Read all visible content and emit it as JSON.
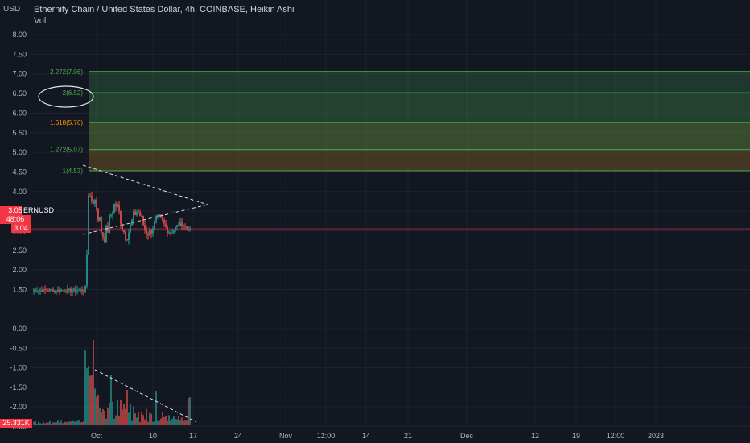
{
  "header": {
    "currency": "USD",
    "title": "Ethernity Chain / United States Dollar, 4h, COINBASE, Heikin Ashi",
    "indicator": "Vol"
  },
  "price_axis": {
    "ticks": [
      "8.00",
      "7.50",
      "7.00",
      "6.50",
      "6.00",
      "5.50",
      "5.00",
      "4.50",
      "4.00",
      "3.50",
      "3.00",
      "2.50",
      "2.00",
      "1.50"
    ],
    "last_price": "3.05",
    "countdown": "48:06",
    "low_price": "3.04",
    "symbol": "ERNUSD"
  },
  "volume_axis": {
    "ticks": [
      "0.00",
      "-0.50",
      "-1.00",
      "-1.50",
      "-2.00",
      "-2.50"
    ],
    "current_volume": "25.331K"
  },
  "time_axis": {
    "labels": [
      "Oct",
      "10",
      "17",
      "24",
      "Nov",
      "12:00",
      "14",
      "21",
      "Dec",
      "12",
      "19",
      "12:00",
      "2023"
    ]
  },
  "colors": {
    "background": "#131722",
    "grid": "#1e222d",
    "up": "#26a69a",
    "down": "#ef5350",
    "fib_line": "#4caf50",
    "fib_text": "#4caf50",
    "fib_highlight_text": "#ff9800",
    "price_line": "#f23645"
  },
  "chart_data": {
    "type": "candlestick",
    "symbol": "ERNUSD",
    "interval": "4h",
    "exchange": "COINBASE",
    "chart_style": "Heikin Ashi",
    "y_range": [
      1.3,
      8.0
    ],
    "fib_extension": [
      {
        "level": "2.272",
        "price": 7.06,
        "label": "2.272(7.06)"
      },
      {
        "level": "2",
        "price": 6.52,
        "label": "2(6.52)"
      },
      {
        "level": "1.618",
        "price": 5.76,
        "label": "1.618(5.76)"
      },
      {
        "level": "1.272",
        "price": 5.07,
        "label": "1.272(5.07)"
      },
      {
        "level": "1",
        "price": 4.53,
        "label": "1(4.53)"
      }
    ],
    "price_series_approx": [
      {
        "x": "Sep 22",
        "close": 1.5
      },
      {
        "x": "Sep 25",
        "close": 1.45
      },
      {
        "x": "Sep 28",
        "close": 1.55
      },
      {
        "x": "Sep 29",
        "close": 3.0
      },
      {
        "x": "Sep 30",
        "close": 3.9
      },
      {
        "x": "Oct 2",
        "close": 3.2
      },
      {
        "x": "Oct 5",
        "close": 3.8
      },
      {
        "x": "Oct 8",
        "close": 3.1
      },
      {
        "x": "Oct 10",
        "close": 2.95
      },
      {
        "x": "Oct 11",
        "close": 3.6
      },
      {
        "x": "Oct 13",
        "close": 3.0
      },
      {
        "x": "Oct 15",
        "close": 3.2
      },
      {
        "x": "Oct 17",
        "close": 3.05
      }
    ],
    "annotations": {
      "triangle_upper": [
        {
          "x": "Sep 29",
          "y": 4.2
        },
        {
          "x": "Oct 20",
          "y": 3.2
        }
      ],
      "triangle_lower": [
        {
          "x": "Sep 29",
          "y": 2.5
        },
        {
          "x": "Oct 20",
          "y": 3.2
        }
      ],
      "circled_level": "1.618(5.76)"
    }
  }
}
